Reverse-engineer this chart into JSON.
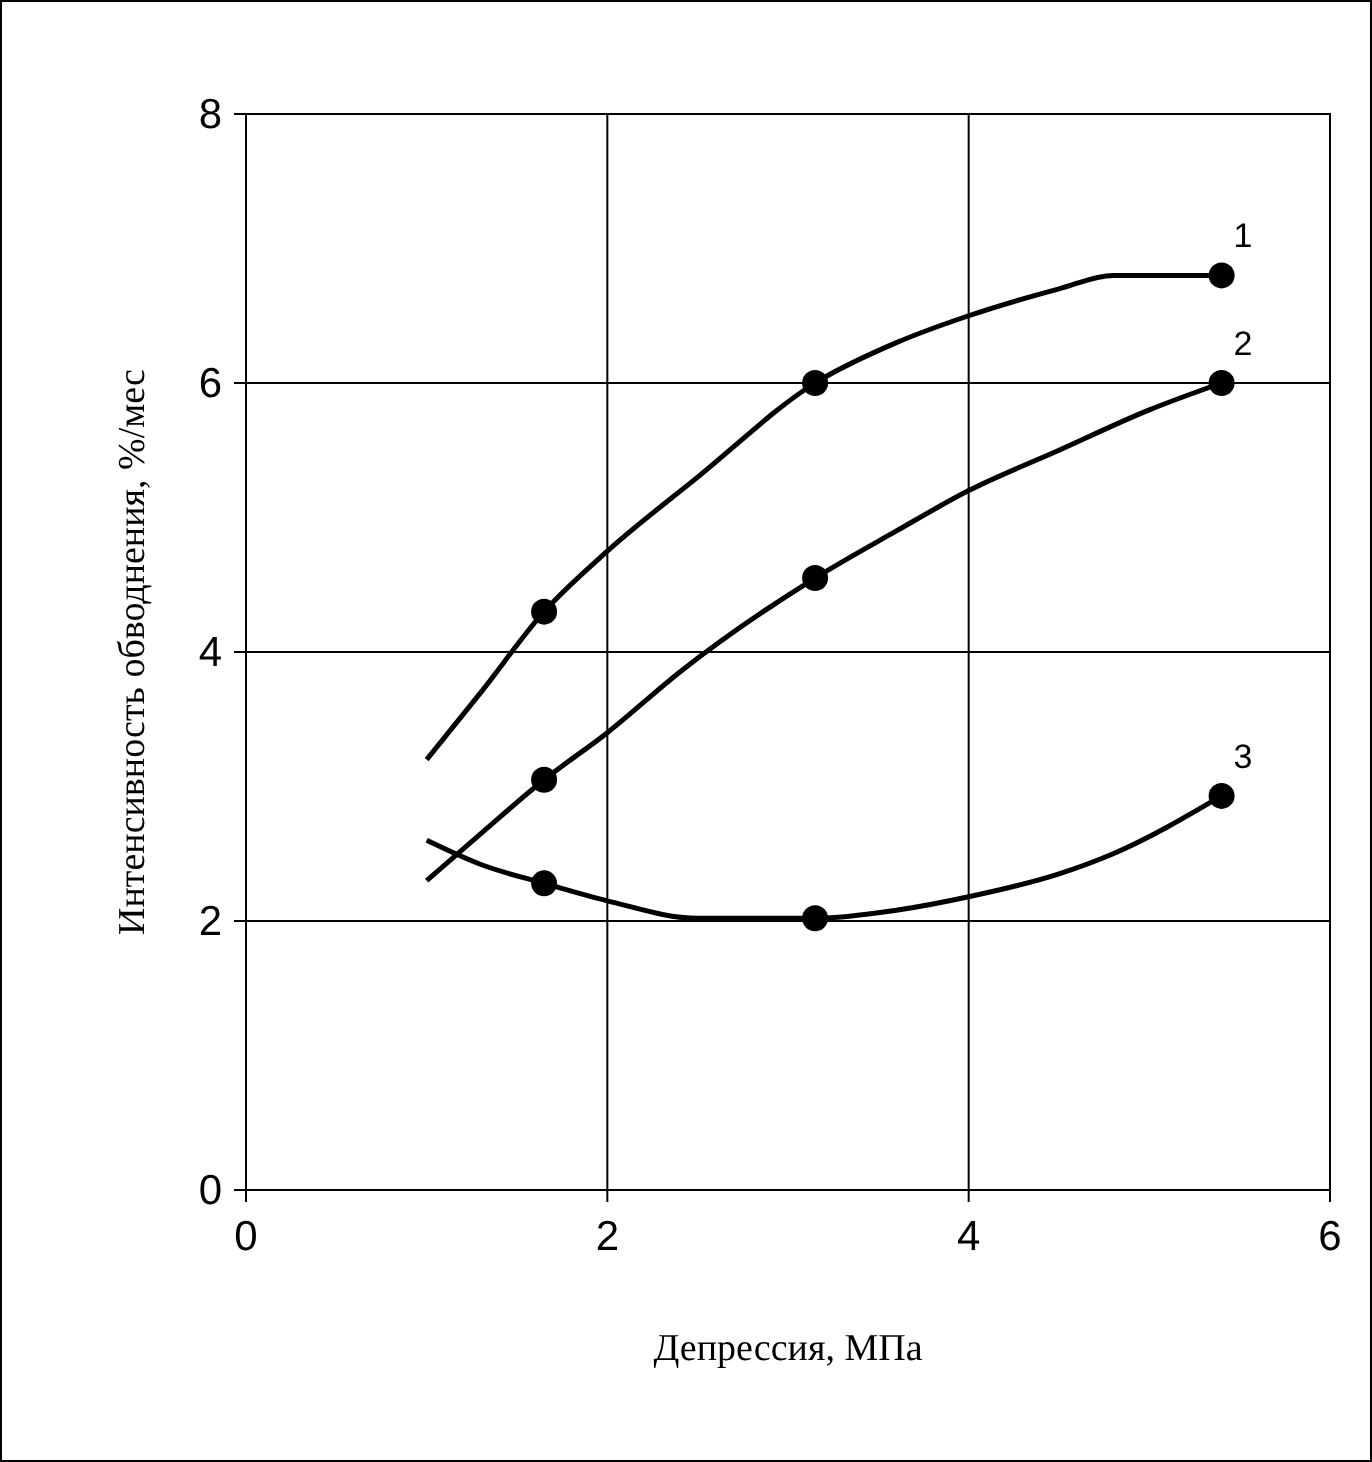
{
  "chart_data": {
    "type": "line",
    "xlabel": "Депрессия, МПа",
    "ylabel": "Интенсивность обводнения, %/мес",
    "xlim": [
      0,
      6
    ],
    "ylim": [
      0,
      8
    ],
    "xticks": [
      0,
      2,
      4,
      6
    ],
    "yticks": [
      0,
      2,
      4,
      6,
      8
    ],
    "grid": true,
    "marker": "none",
    "line_style": "solid",
    "series": [
      {
        "name": "1",
        "color": "#000000",
        "x": [
          1.0,
          1.3,
          1.65,
          2.0,
          2.5,
          3.15,
          3.6,
          4.0,
          4.5,
          4.8,
          5.4
        ],
        "values": [
          3.2,
          3.7,
          4.3,
          4.75,
          5.3,
          6.0,
          6.3,
          6.5,
          6.7,
          6.8,
          6.8
        ]
      },
      {
        "name": "2",
        "color": "#000000",
        "x": [
          1.0,
          1.3,
          1.65,
          2.0,
          2.4,
          3.15,
          3.6,
          4.0,
          4.5,
          5.0,
          5.4
        ],
        "values": [
          2.3,
          2.65,
          3.05,
          3.4,
          3.85,
          4.55,
          4.9,
          5.2,
          5.5,
          5.8,
          6.0
        ]
      },
      {
        "name": "3",
        "color": "#000000",
        "x": [
          1.0,
          1.3,
          1.65,
          2.0,
          2.5,
          3.15,
          3.6,
          4.0,
          4.5,
          4.8,
          5.4
        ],
        "values": [
          2.6,
          2.42,
          2.28,
          2.15,
          2.02,
          2.02,
          2.08,
          2.18,
          2.35,
          2.5,
          2.93
        ]
      },
      {
        "color": "#000000",
        "type": "scatter",
        "marker": "circle",
        "x": [
          1.65,
          3.15,
          5.4
        ],
        "values": [
          4.3,
          6.0,
          6.8
        ]
      },
      {
        "color": "#000000",
        "type": "scatter",
        "marker": "circle",
        "x": [
          1.65,
          3.15,
          5.4
        ],
        "values": [
          3.05,
          4.55,
          6.0
        ]
      },
      {
        "color": "#000000",
        "type": "scatter",
        "marker": "circle",
        "x": [
          1.65,
          3.15,
          5.4
        ],
        "values": [
          2.28,
          2.02,
          2.93
        ]
      }
    ]
  }
}
